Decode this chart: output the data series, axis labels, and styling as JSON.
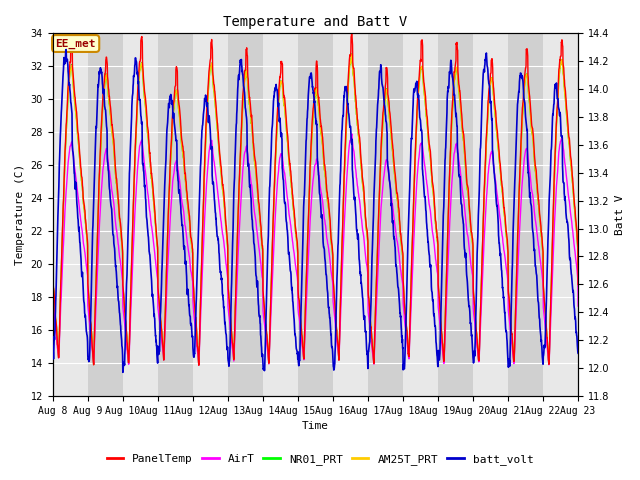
{
  "title": "Temperature and Batt V",
  "xlabel": "Time",
  "ylabel_left": "Temperature (C)",
  "ylabel_right": "Batt V",
  "annotation": "EE_met",
  "ylim_left": [
    12,
    34
  ],
  "ylim_right": [
    11.8,
    14.4
  ],
  "yticks_left": [
    12,
    14,
    16,
    18,
    20,
    22,
    24,
    26,
    28,
    30,
    32,
    34
  ],
  "yticks_right": [
    11.8,
    12.0,
    12.2,
    12.4,
    12.6,
    12.8,
    13.0,
    13.2,
    13.4,
    13.6,
    13.8,
    14.0,
    14.2,
    14.4
  ],
  "n_days": 15,
  "xtick_labels": [
    "Aug 8",
    "Aug 9",
    "Aug 10",
    "Aug 11",
    "Aug 12",
    "Aug 13",
    "Aug 14",
    "Aug 15",
    "Aug 16",
    "Aug 17",
    "Aug 18",
    "Aug 19",
    "Aug 20",
    "Aug 21",
    "Aug 22",
    "Aug 23"
  ],
  "legend_labels": [
    "PanelTemp",
    "AirT",
    "NR01_PRT",
    "AM25T_PRT",
    "batt_volt"
  ],
  "legend_colors": [
    "#ff0000",
    "#ff00ff",
    "#00ff00",
    "#ffcc00",
    "#0000cc"
  ],
  "line_widths": [
    1.0,
    1.0,
    1.0,
    1.0,
    1.2
  ],
  "fig_bg_color": "#ffffff",
  "plot_bg_color": "#d8d8d8",
  "band_color_light": "#e8e8e8",
  "band_color_dark": "#d0d0d0",
  "grid_color": "#ffffff",
  "font_family": "monospace",
  "title_fontsize": 10,
  "axis_fontsize": 8,
  "tick_fontsize": 7,
  "legend_fontsize": 8
}
